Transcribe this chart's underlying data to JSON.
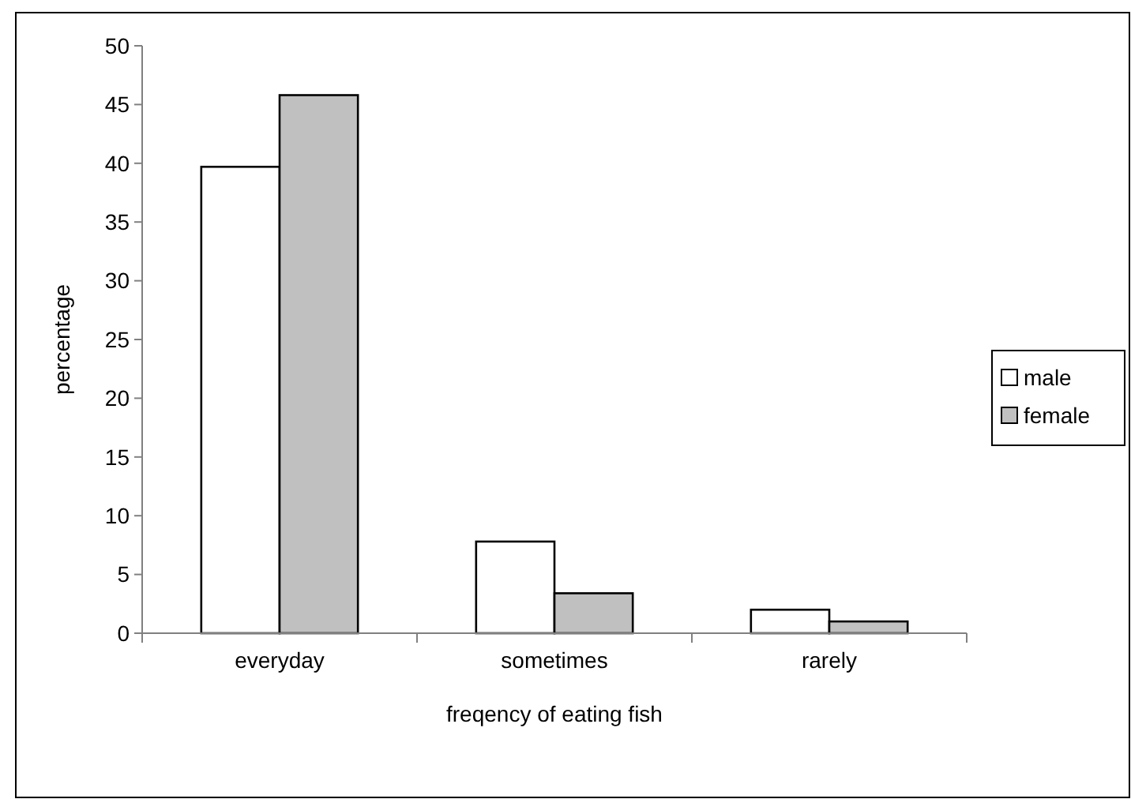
{
  "chart_data": {
    "type": "bar",
    "xlabel": "freqency of eating fish",
    "ylabel": "percentage",
    "categories": [
      "everyday",
      "sometimes",
      "rarely"
    ],
    "series": [
      {
        "name": "male",
        "color": "#ffffff",
        "values": [
          39.7,
          7.8,
          2.0
        ]
      },
      {
        "name": "female",
        "color": "#c0c0c0",
        "values": [
          45.8,
          3.4,
          1.0
        ]
      }
    ],
    "ylim": [
      0,
      50
    ],
    "yticks": [
      0,
      5,
      10,
      15,
      20,
      25,
      30,
      35,
      40,
      45,
      50
    ],
    "grid": false,
    "legend": "right"
  }
}
